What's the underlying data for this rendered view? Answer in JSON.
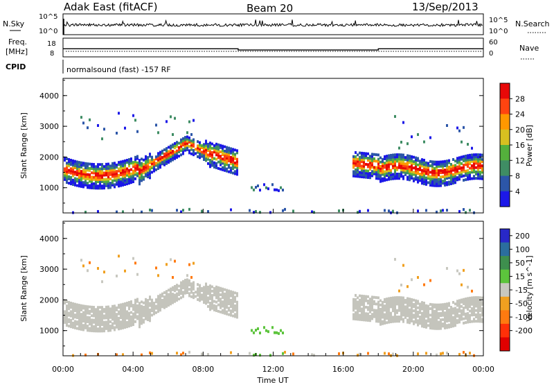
{
  "header": {
    "title": "Adak East (fitACF)",
    "beam": "Beam 20",
    "date": "13/Sep/2013"
  },
  "strips": {
    "nsky_label": "N.Sky",
    "nsky_ticks": [
      "10^5",
      "10^0"
    ],
    "nsearch_label": "N.Search",
    "freq_label_1": "Freq.",
    "freq_label_2": "[MHz]",
    "freq_ticks": [
      "18",
      "8"
    ],
    "nave_label": "Nave",
    "nave_ticks": [
      "60",
      "0"
    ],
    "cpid_label": "CPID",
    "cpid_text": "normalsound (fast) -157 RF"
  },
  "chart_data": [
    {
      "type": "heatmap",
      "name": "power",
      "xlabel": "Time UT",
      "ylabel": "Slant Range [km]",
      "x_ticks": [
        "00:00",
        "04:00",
        "08:00",
        "12:00",
        "16:00",
        "20:00",
        "00:00"
      ],
      "x_range_hours": [
        0,
        24
      ],
      "y_ticks": [
        1000,
        2000,
        3000,
        4000
      ],
      "y_range_km": [
        180,
        4560
      ],
      "colorbar_label": "Power [dB]",
      "colorbar_ticks": [
        4,
        8,
        12,
        16,
        20,
        24,
        28
      ],
      "colorbar_range": [
        0,
        32
      ],
      "colors": [
        "#1c18e8",
        "#2c56a8",
        "#3f8d64",
        "#54b03c",
        "#d8c020",
        "#ff9800",
        "#ff4410",
        "#e80808"
      ]
    },
    {
      "type": "heatmap",
      "name": "velocity",
      "xlabel": "Time UT",
      "ylabel": "Slant Range [km]",
      "x_ticks": [
        "00:00",
        "04:00",
        "08:00",
        "12:00",
        "16:00",
        "20:00",
        "00:00"
      ],
      "x_range_hours": [
        0,
        24
      ],
      "y_ticks": [
        1000,
        2000,
        3000,
        4000
      ],
      "y_range_km": [
        180,
        4560
      ],
      "colorbar_label": "Velocity [m s^-1]",
      "colorbar_ticks": [
        "200",
        "100",
        "50",
        "15",
        "-15",
        "-50",
        "-100",
        "-200"
      ],
      "colors": [
        "#2828c8",
        "#2b6e9e",
        "#3e8f4e",
        "#5cc43c",
        "#c8c8c0",
        "#f0a020",
        "#ff7a10",
        "#ff3008",
        "#e00000"
      ]
    },
    {
      "type": "line",
      "name": "frequency",
      "ylabel": "Freq. [MHz]",
      "x_hours": [
        0,
        10,
        10,
        18,
        18,
        24
      ],
      "y_mhz": [
        11.5,
        11.5,
        10.4,
        10.4,
        11.5,
        11.5
      ]
    }
  ],
  "colors": {
    "ground_scatter": "#c4c4bc"
  }
}
